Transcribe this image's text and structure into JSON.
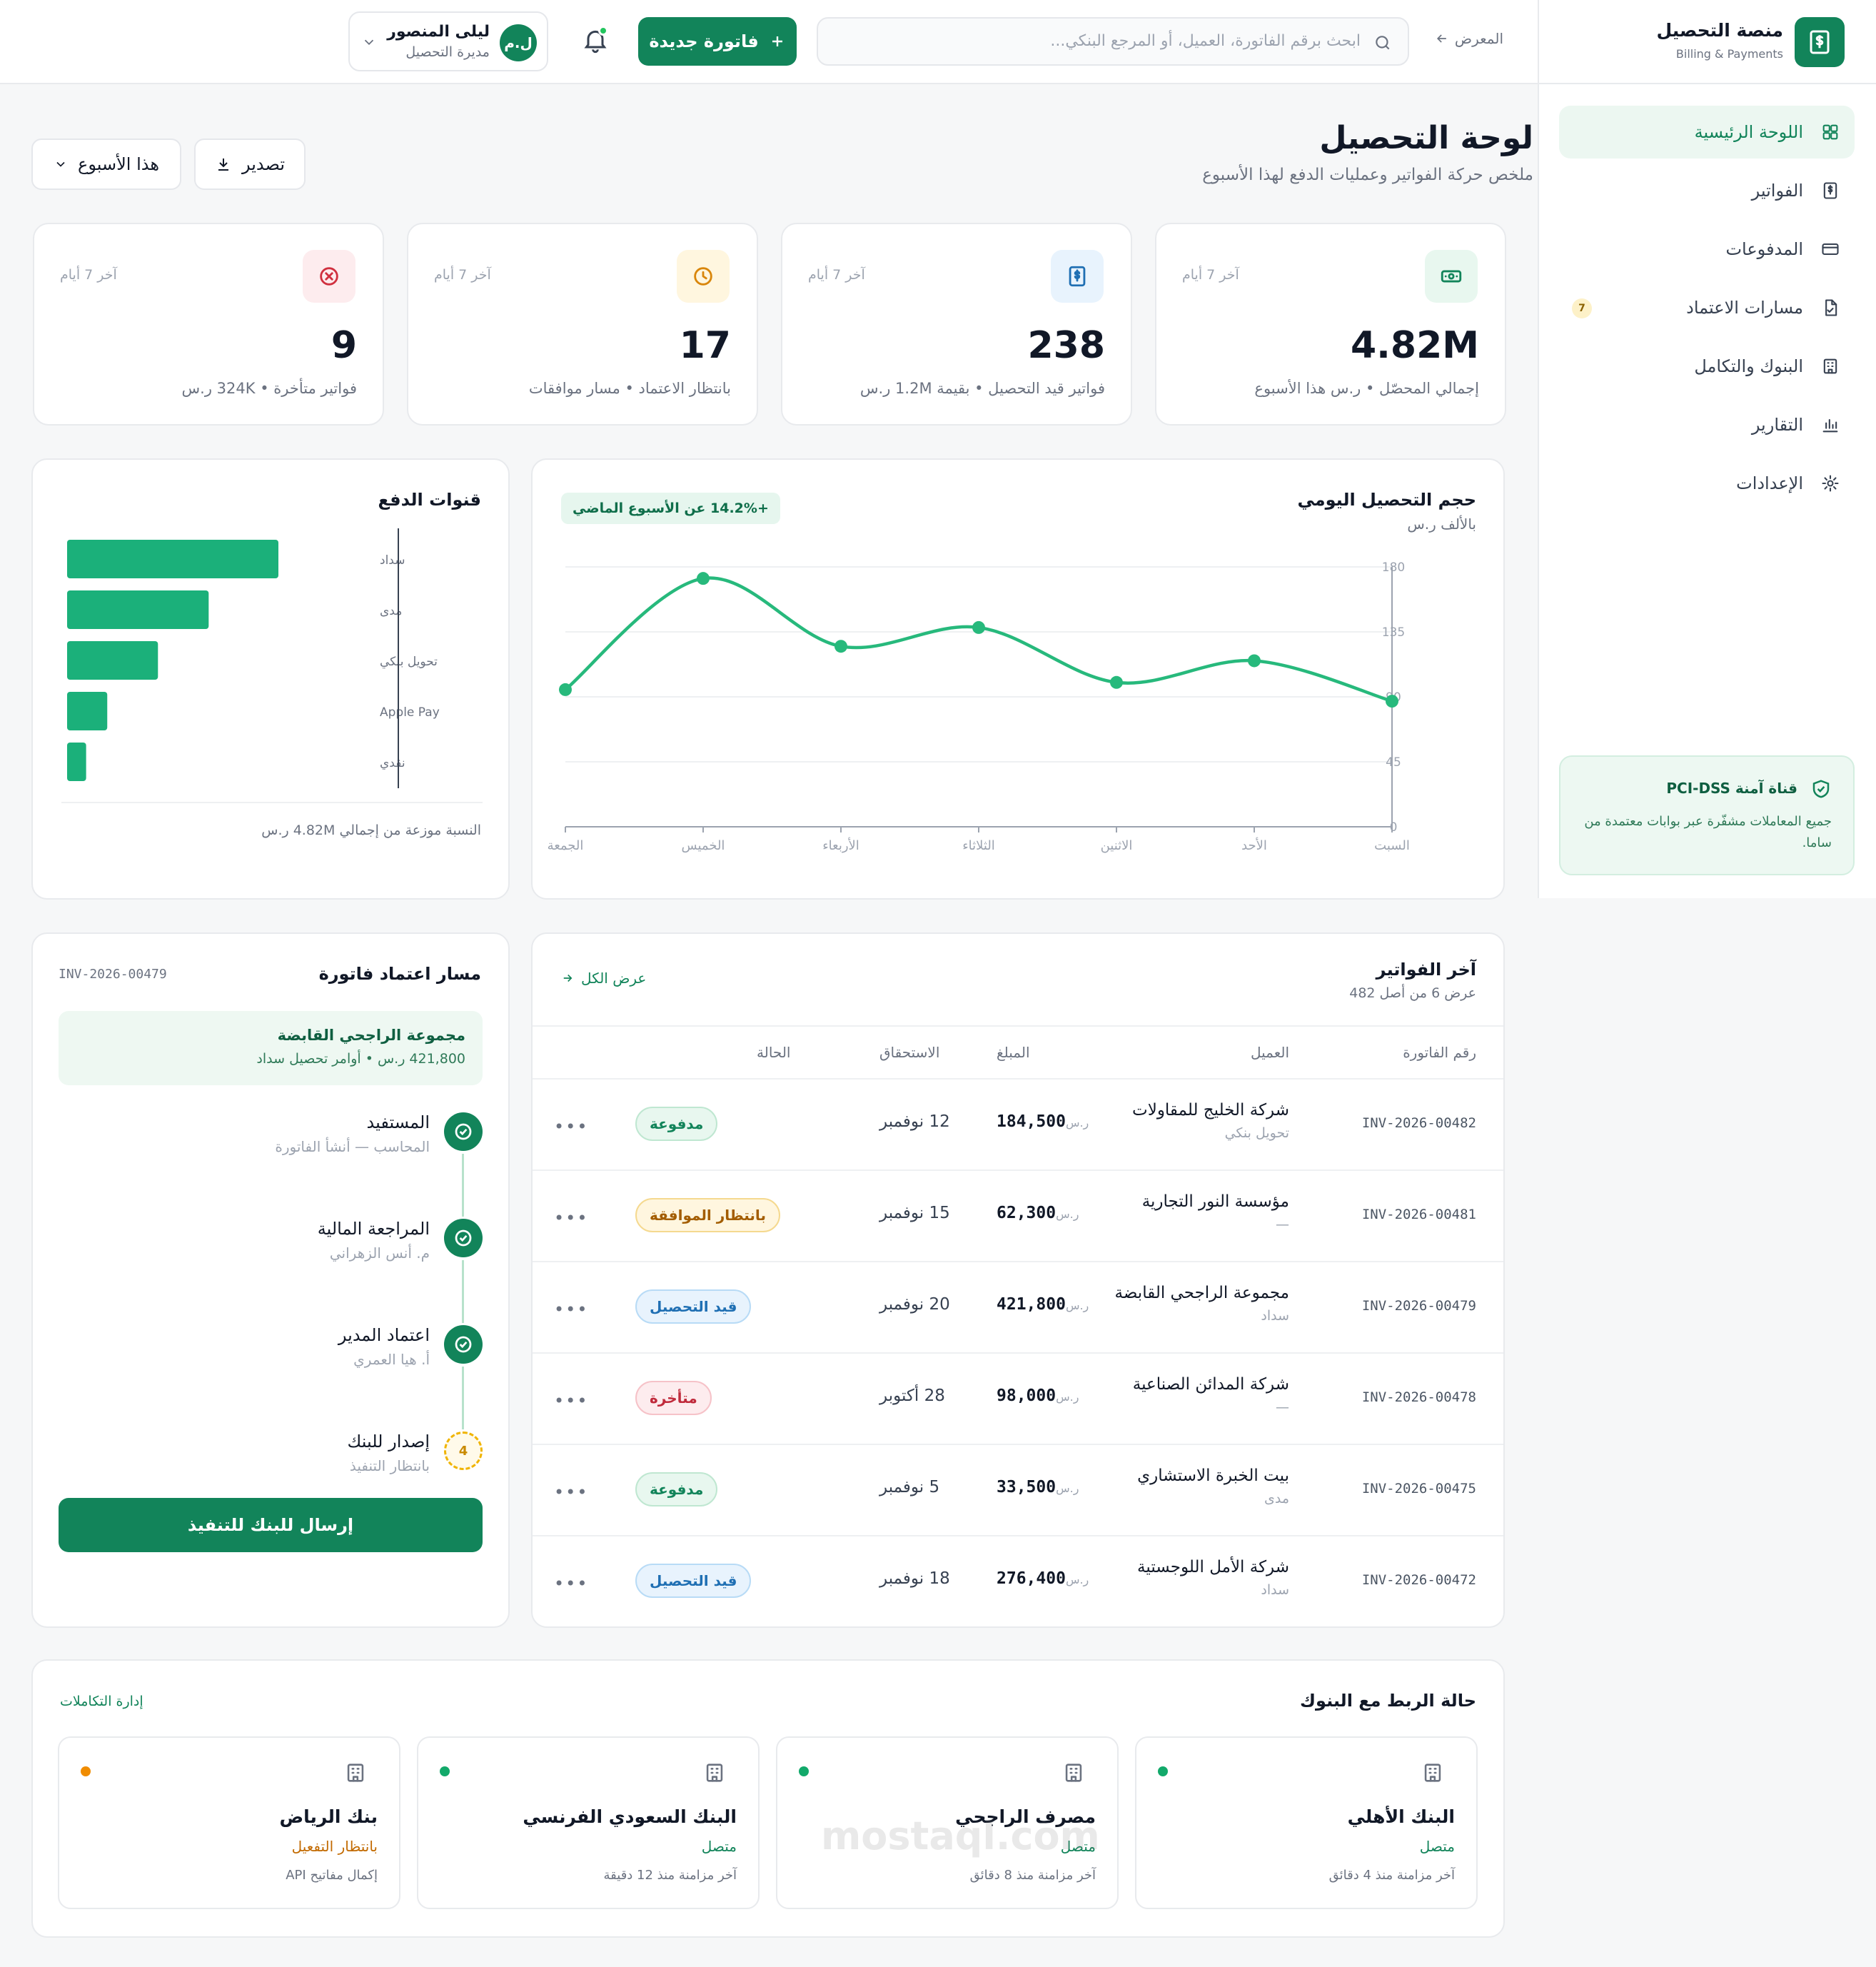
{
  "sidebar": {
    "brand": "منصة التحصيل",
    "brand_sub": "Billing & Payments",
    "nav": [
      {
        "label": "اللوحة الرئيسية",
        "icon": "grid-icon",
        "active": true
      },
      {
        "label": "الفواتير",
        "icon": "invoice-icon"
      },
      {
        "label": "المدفوعات",
        "icon": "card-icon"
      },
      {
        "label": "مسارات الاعتماد",
        "icon": "document-check-icon",
        "badge": "7"
      },
      {
        "label": "البنوك والتكامل",
        "icon": "bank-icon"
      },
      {
        "label": "التقارير",
        "icon": "bar-chart-icon"
      },
      {
        "label": "الإعدادات",
        "icon": "gear-icon"
      }
    ],
    "secure": {
      "title": "قناة آمنة PCI-DSS",
      "text": "جميع المعاملات مشفّرة عبر بوابات معتمدة من ساما."
    }
  },
  "topbar": {
    "back": "المعرض",
    "search_placeholder": "ابحث برقم الفاتورة، العميل، أو المرجع البنكي...",
    "new_invoice": "فاتورة جديدة",
    "user": {
      "initials": "ل.م",
      "name": "ليلى المنصور",
      "role": "مديرة التحصيل"
    }
  },
  "header": {
    "title": "لوحة التحصيل",
    "subtitle": "ملخص حركة الفواتير وعمليات الدفع لهذا الأسبوع",
    "export": "تصدير",
    "period": "هذا الأسبوع"
  },
  "kpis": [
    {
      "value": "4.82M",
      "label": "إجمالي المحصّل • ر.س هذا الأسبوع",
      "period": "آخر 7 أيام",
      "icon": "cash-icon",
      "color": "#12845a",
      "bg": "#e8f7ef"
    },
    {
      "value": "238",
      "label": "فواتير قيد التحصيل • بقيمة 1.2M ر.س",
      "period": "آخر 7 أيام",
      "icon": "invoice-dollar-icon",
      "color": "#1f6fb3",
      "bg": "#e8f3fd"
    },
    {
      "value": "17",
      "label": "بانتظار الاعتماد • مسار موافقات",
      "period": "آخر 7 أيام",
      "icon": "clock-icon",
      "color": "#d9860b",
      "bg": "#fff6df"
    },
    {
      "value": "9",
      "label": "فواتير متأخرة • 324K ر.س",
      "period": "آخر 7 أيام",
      "icon": "x-circle-icon",
      "color": "#d0303f",
      "bg": "#fdecee"
    }
  ],
  "daily_chart": {
    "title": "حجم التحصيل اليومي",
    "subtitle": "بالألف ر.س",
    "trend": "+14.2% عن الأسبوع الماضي"
  },
  "channels": {
    "title": "قنوات الدفع",
    "note": "النسبة موزعة من إجمالي 4.82M ر.س"
  },
  "chart_data": [
    {
      "type": "line",
      "title": "حجم التحصيل اليومي",
      "subtitle": "بالألف ر.س",
      "categories": [
        "السبت",
        "الأحد",
        "الاثنين",
        "الثلاثاء",
        "الأربعاء",
        "الخميس",
        "الجمعة"
      ],
      "values": [
        87,
        115,
        100,
        138,
        125,
        172,
        95
      ],
      "ylim": [
        0,
        180
      ],
      "yticks": [
        0,
        45,
        90,
        135,
        180
      ],
      "ytick_labels": [
        "0",
        "45",
        "90",
        "135",
        "180"
      ],
      "grid": true,
      "color": "#27b97c"
    },
    {
      "type": "bar",
      "orientation": "horizontal",
      "title": "قنوات الدفع",
      "categories": [
        "سداد",
        "مدى",
        "تحويل بنكي",
        "Apple Pay",
        "نقدي"
      ],
      "values": [
        100,
        67,
        43,
        19,
        9
      ],
      "xlim": [
        0,
        100
      ],
      "color": "#1bb07a"
    }
  ],
  "invoices": {
    "title": "آخر الفواتير",
    "subtitle": "عرض 6 من أصل 482",
    "view_all": "عرض الكل",
    "columns": [
      "رقم الفاتورة",
      "العميل",
      "المبلغ",
      "الاستحقاق",
      "الحالة"
    ],
    "currency": "ر.س",
    "rows": [
      {
        "no": "INV-2026-00482",
        "client": "شركة الخليج للمقاولات",
        "method": "تحويل بنكي",
        "amount": "184,500",
        "due": "12 نوفمبر",
        "status": "مدفوعة",
        "st": "paid"
      },
      {
        "no": "INV-2026-00481",
        "client": "مؤسسة النور التجارية",
        "method": "—",
        "amount": "62,300",
        "due": "15 نوفمبر",
        "status": "بانتظار الموافقة",
        "st": "pending"
      },
      {
        "no": "INV-2026-00479",
        "client": "مجموعة الراجحي القابضة",
        "method": "سداد",
        "amount": "421,800",
        "due": "20 نوفمبر",
        "status": "قيد التحصيل",
        "st": "proc"
      },
      {
        "no": "INV-2026-00478",
        "client": "شركة المدائن الصناعية",
        "method": "—",
        "amount": "98,000",
        "due": "28 أكتوبر",
        "status": "متأخرة",
        "st": "late"
      },
      {
        "no": "INV-2026-00475",
        "client": "بيت الخبرة الاستشاري",
        "method": "مدى",
        "amount": "33,500",
        "due": "5 نوفمبر",
        "status": "مدفوعة",
        "st": "paid"
      },
      {
        "no": "INV-2026-00472",
        "client": "شركة الأمل اللوجستية",
        "method": "سداد",
        "amount": "276,400",
        "due": "18 نوفمبر",
        "status": "قيد التحصيل",
        "st": "proc"
      }
    ]
  },
  "approval": {
    "title": "مسار اعتماد فاتورة",
    "invoice_no": "INV-2026-00479",
    "client": "مجموعة الراجحي القابضة",
    "detail": "421,800 ر.س • أوامر تحصيل سداد",
    "steps": [
      {
        "title": "المستفيد",
        "meta": "المحاسب — أنشأ الفاتورة",
        "state": "done"
      },
      {
        "title": "المراجعة المالية",
        "meta": "م. أنس الزهراني",
        "state": "done"
      },
      {
        "title": "اعتماد المدير",
        "meta": "أ. هيا العمري",
        "state": "done"
      },
      {
        "title": "إصدار للبنك",
        "meta": "بانتظار التنفيذ",
        "state": "pending",
        "number": "4"
      }
    ],
    "button": "إرسال للبنك للتنفيذ"
  },
  "banks": {
    "title": "حالة الربط مع البنوك",
    "manage": "إدارة التكاملات",
    "items": [
      {
        "name": "البنك الأهلي",
        "status": "متصل",
        "sync": "آخر مزامنة منذ 4 دقائق",
        "dot": "#12a96a",
        "status_color": "#12845a"
      },
      {
        "name": "مصرف الراجحي",
        "status": "متصل",
        "sync": "آخر مزامنة منذ 8 دقائق",
        "dot": "#12a96a",
        "status_color": "#12845a"
      },
      {
        "name": "البنك السعودي الفرنسي",
        "status": "متصل",
        "sync": "آخر مزامنة منذ 12 دقيقة",
        "dot": "#12a96a",
        "status_color": "#12845a"
      },
      {
        "name": "بنك الرياض",
        "status": "بانتظار التفعيل",
        "sync": "إكمال مفاتيح API",
        "dot": "#f08c00",
        "status_color": "#c26a00"
      }
    ]
  },
  "watermark": {
    "text": "mostaql.com"
  }
}
